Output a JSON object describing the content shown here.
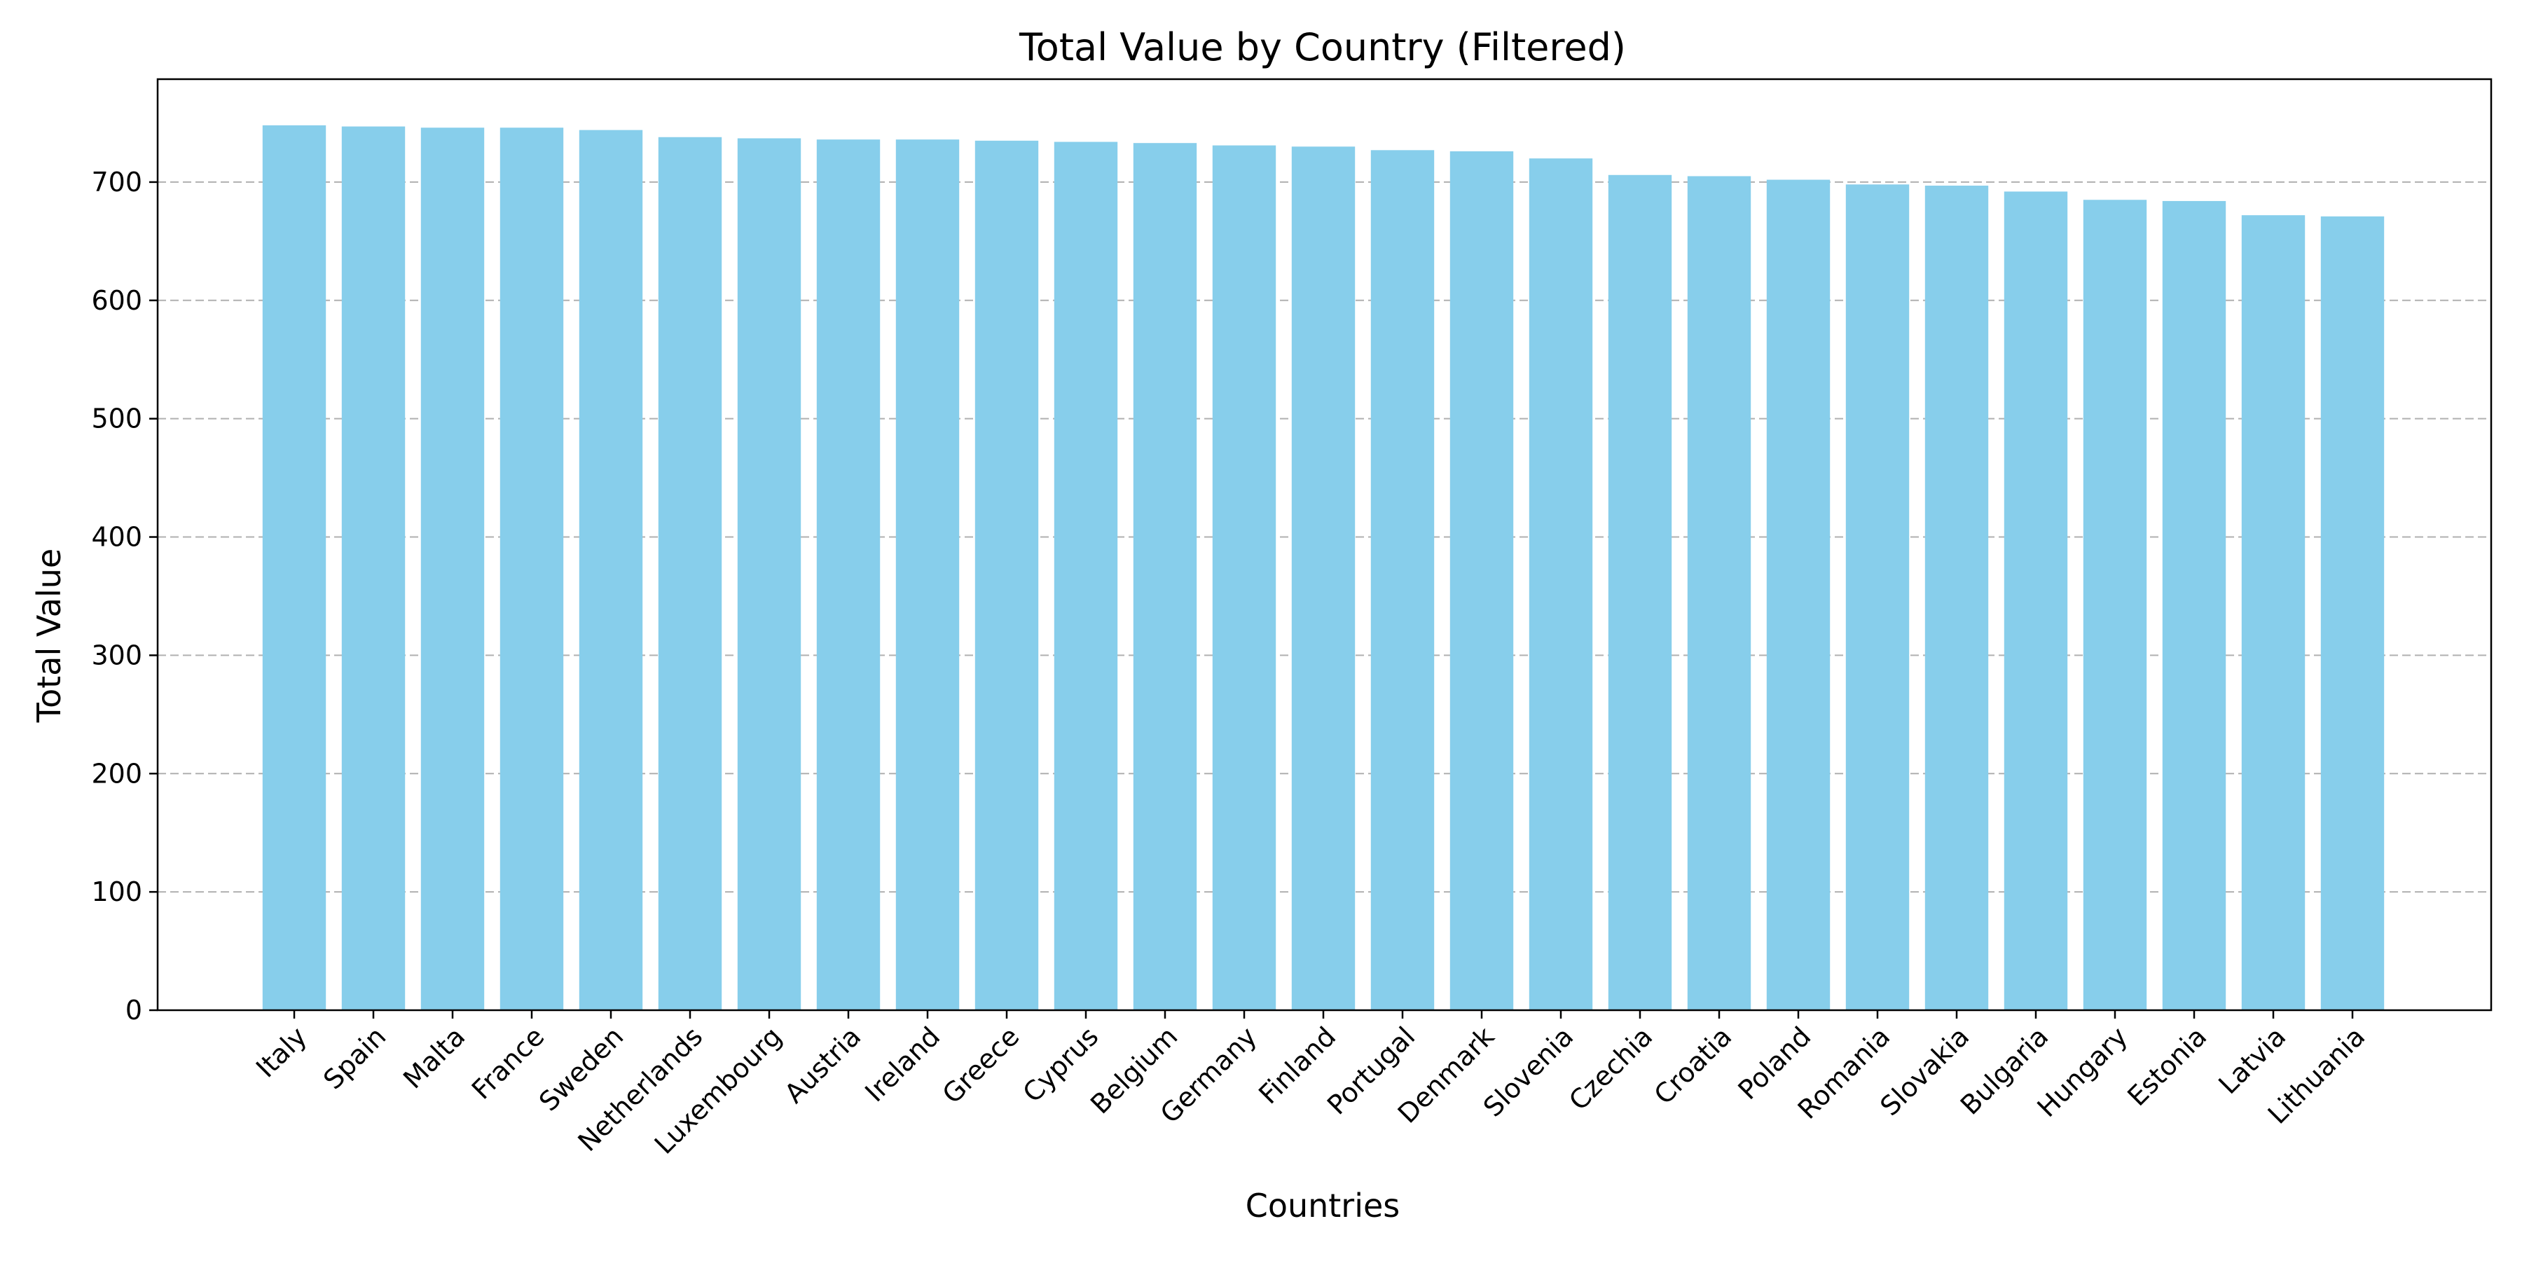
{
  "chart_data": {
    "type": "bar",
    "title": "Total Value by Country (Filtered)",
    "xlabel": "Countries",
    "ylabel": "Total Value",
    "categories": [
      "Italy",
      "Spain",
      "Malta",
      "France",
      "Sweden",
      "Netherlands",
      "Luxembourg",
      "Austria",
      "Ireland",
      "Greece",
      "Cyprus",
      "Belgium",
      "Germany",
      "Finland",
      "Portugal",
      "Denmark",
      "Slovenia",
      "Czechia",
      "Croatia",
      "Poland",
      "Romania",
      "Slovakia",
      "Bulgaria",
      "Hungary",
      "Estonia",
      "Latvia",
      "Lithuania"
    ],
    "values": [
      748,
      747,
      746,
      746,
      744,
      738,
      737,
      736,
      736,
      735,
      734,
      733,
      731,
      730,
      727,
      726,
      720,
      706,
      705,
      702,
      698,
      697,
      692,
      685,
      684,
      672,
      671
    ],
    "ylim": [
      0,
      787
    ],
    "yticks": [
      0,
      100,
      200,
      300,
      400,
      500,
      600,
      700
    ],
    "grid": "horizontal dashed",
    "colors": {
      "bar": "#87ceeb",
      "grid": "#b0b0b0",
      "axis": "#000000"
    }
  }
}
